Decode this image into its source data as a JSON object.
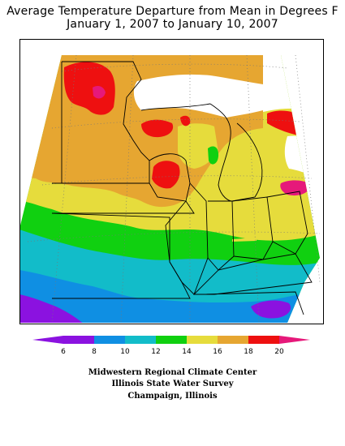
{
  "title": {
    "line1": "Average Temperature Departure from Mean in Degrees F",
    "line2": "January 1, 2007 to January 10, 2007"
  },
  "legend": {
    "ticks": [
      "6",
      "8",
      "10",
      "12",
      "14",
      "16",
      "18",
      "20"
    ],
    "colors": [
      "#8b12e0",
      "#0f8fe3",
      "#12bcc9",
      "#10d010",
      "#e6dc3c",
      "#e6a631",
      "#ee1010",
      "#e6197a"
    ]
  },
  "credits": {
    "line1": "Midwestern Regional Climate Center",
    "line2": "Illinois State Water Survey",
    "line3": "Champaign, Illinois"
  }
}
